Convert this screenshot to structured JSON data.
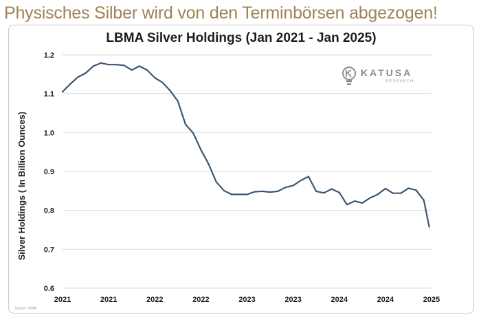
{
  "headline": "Physisches Silber wird von den Terminbörsen abgezogen!",
  "logo": {
    "name": "KATUSA",
    "sub": "RESEARCH",
    "color": "#8d8d8d"
  },
  "source_note": "Source: LBMA",
  "colors": {
    "line": "#3c5573",
    "grid": "#d9d9d9",
    "headline": "#a08257"
  },
  "chart_data": {
    "type": "line",
    "title": "LBMA Silver Holdings (Jan 2021 - Jan 2025)",
    "xlabel": "",
    "ylabel": "Silver Holdings ( In Billion Ounces)",
    "ylim": [
      0.6,
      1.2
    ],
    "yticks": [
      0.6,
      0.7,
      0.8,
      0.9,
      1.0,
      1.1,
      1.2
    ],
    "ytick_labels": [
      "0.6",
      "0.7",
      "0.8",
      "0.9",
      "1.0",
      "1.1",
      "1.2"
    ],
    "x_unit": "months since Jan 2021",
    "xlim": [
      0,
      48
    ],
    "xticks": [
      0,
      6,
      12,
      18,
      24,
      30,
      36,
      42,
      48
    ],
    "xtick_labels": [
      "2021",
      "2021",
      "2022",
      "2022",
      "2023",
      "2023",
      "2024",
      "2024",
      "2025"
    ],
    "grid": true,
    "legend": "none",
    "series": [
      {
        "name": "LBMA Silver Holdings",
        "x": [
          0,
          1,
          2,
          3,
          4,
          5,
          6,
          7,
          8,
          9,
          10,
          11,
          12,
          13,
          14,
          15,
          16,
          17,
          18,
          19,
          20,
          21,
          22,
          23,
          24,
          25,
          26,
          27,
          28,
          29,
          30,
          31,
          32,
          33,
          34,
          35,
          36,
          37,
          38,
          39,
          40,
          41,
          42,
          43,
          44,
          45,
          46,
          47,
          47.7
        ],
        "values": [
          1.105,
          1.125,
          1.143,
          1.153,
          1.171,
          1.179,
          1.175,
          1.175,
          1.173,
          1.161,
          1.171,
          1.161,
          1.141,
          1.129,
          1.108,
          1.081,
          1.021,
          0.999,
          0.956,
          0.919,
          0.873,
          0.851,
          0.841,
          0.841,
          0.841,
          0.848,
          0.849,
          0.847,
          0.849,
          0.859,
          0.864,
          0.877,
          0.887,
          0.849,
          0.845,
          0.855,
          0.846,
          0.815,
          0.824,
          0.819,
          0.832,
          0.841,
          0.856,
          0.844,
          0.844,
          0.857,
          0.852,
          0.826,
          0.758
        ]
      }
    ]
  }
}
